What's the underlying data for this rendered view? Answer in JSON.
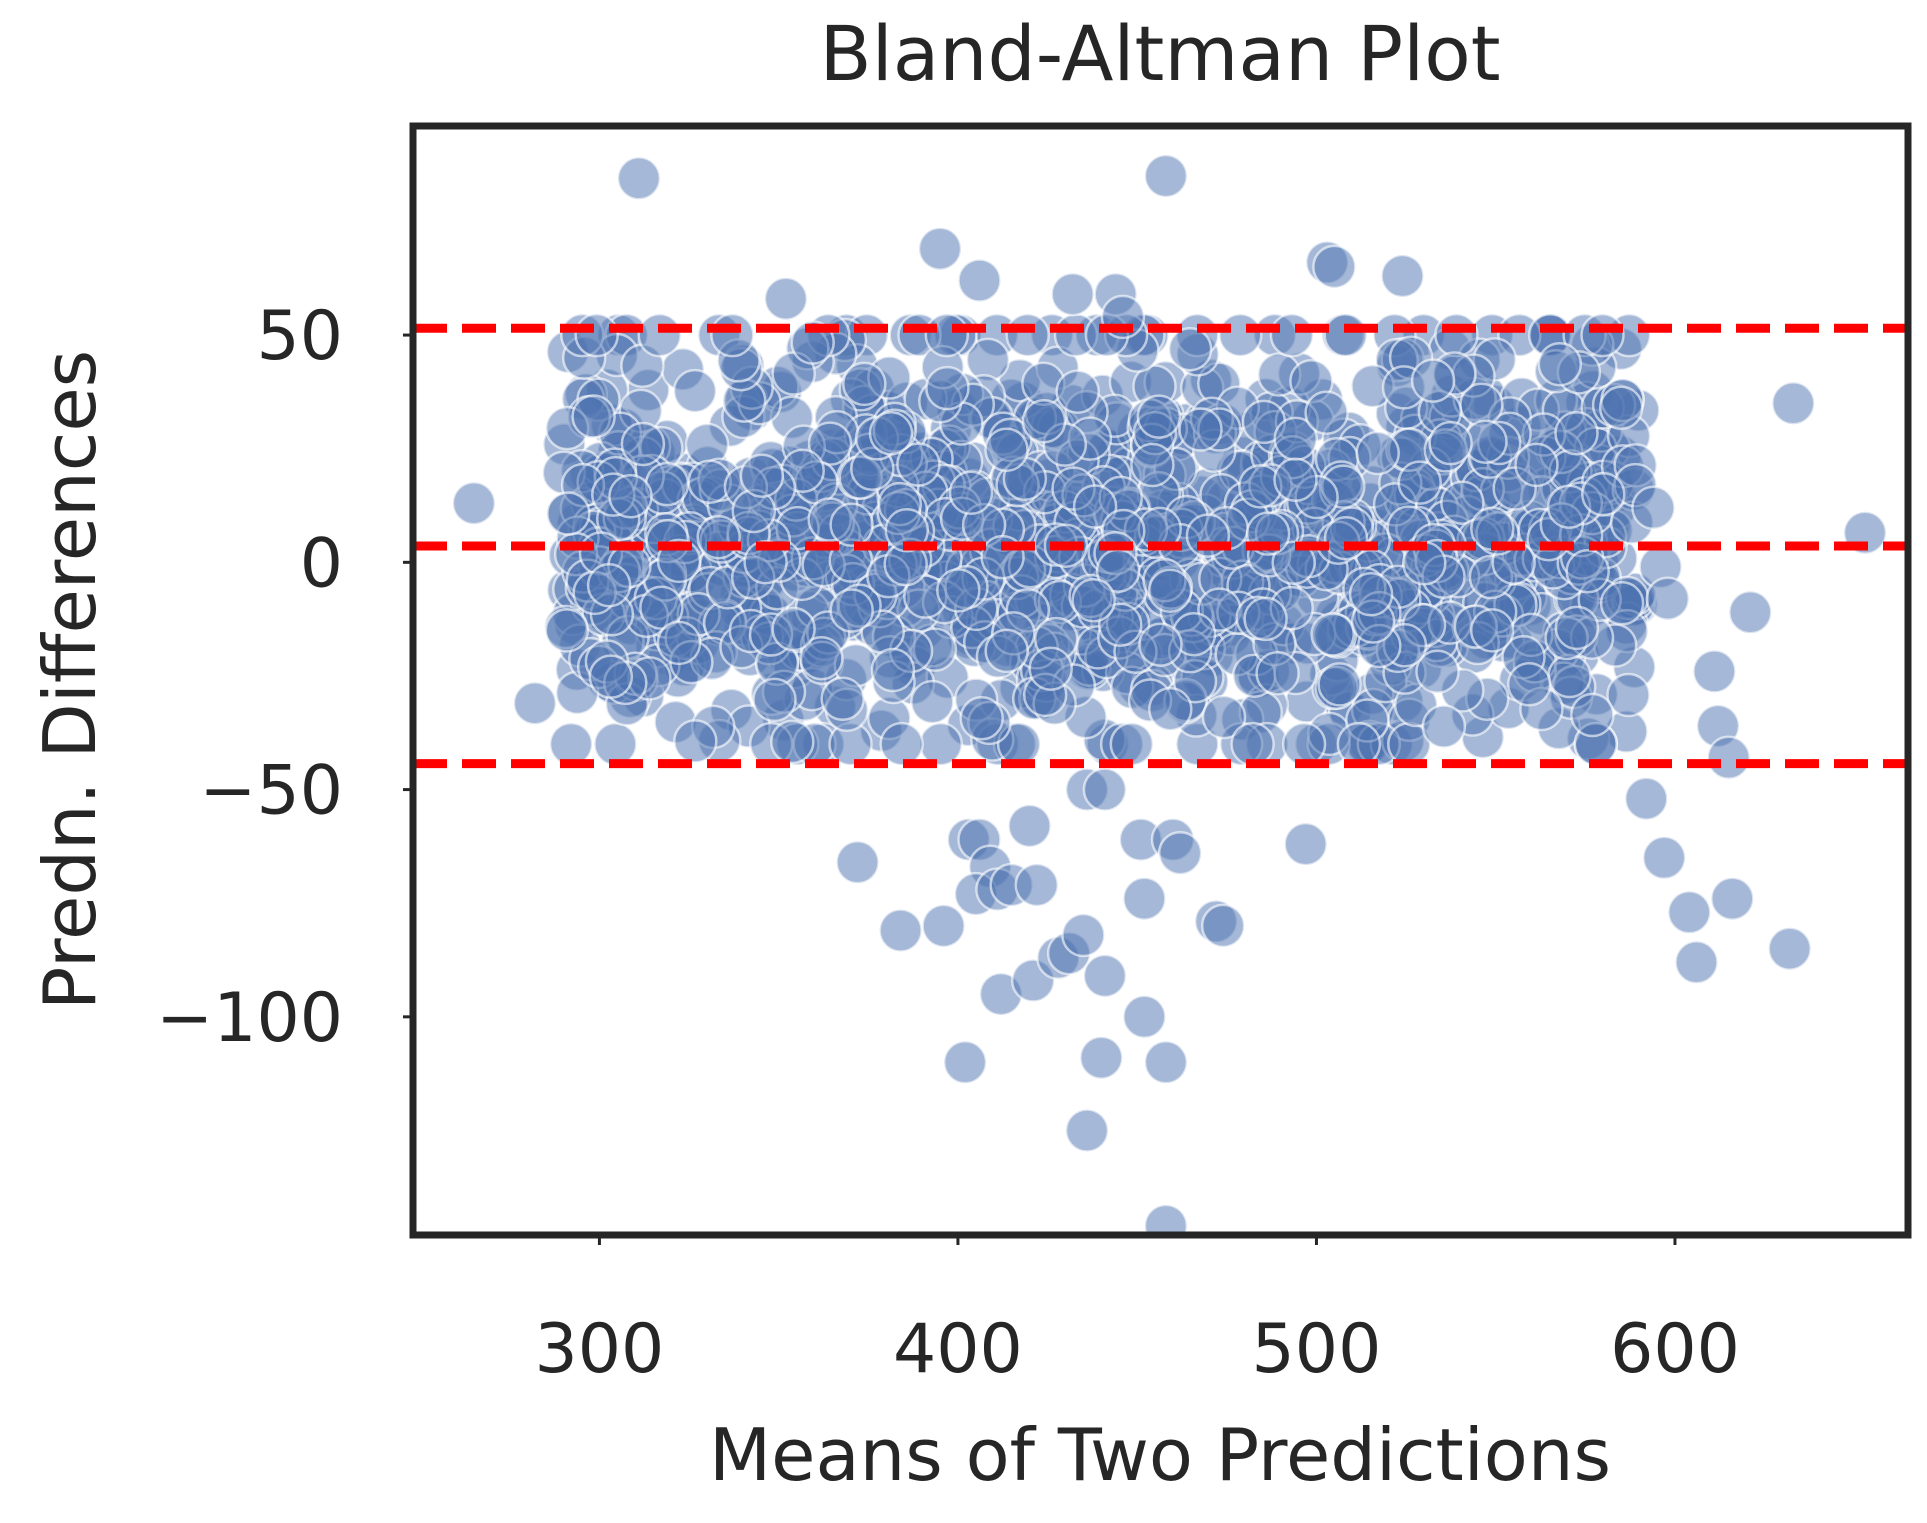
{
  "chart_data": {
    "type": "scatter",
    "title": "Bland-Altman Plot",
    "xlabel": "Means of Two Predictions",
    "ylabel": "Predn. Differences",
    "xlim": [
      248,
      665
    ],
    "ylim": [
      -148,
      96
    ],
    "xticks": [
      300,
      400,
      500,
      600
    ],
    "yticks": [
      -100,
      -50,
      0,
      50
    ],
    "xtick_labels": [
      "300",
      "400",
      "500",
      "600"
    ],
    "ytick_labels": [
      "−100",
      "−50",
      "0",
      "50"
    ],
    "grid": false,
    "point_color": "#4c72b0",
    "point_alpha": 0.5,
    "reference_line_color": "#ff0000",
    "reference_lines": [
      {
        "name": "upper-limit-of-agreement",
        "y": 51.5
      },
      {
        "name": "mean-difference",
        "y": 3.6
      },
      {
        "name": "lower-limit-of-agreement",
        "y": -44.3
      }
    ],
    "dense_cloud": {
      "approx_count": 1500,
      "x_range": [
        290,
        590
      ],
      "y_range": [
        -40,
        50
      ],
      "centered_y": 3.6
    },
    "points": [
      [
        311,
        84.5
      ],
      [
        458,
        85
      ],
      [
        265,
        13
      ],
      [
        653,
        6.5
      ],
      [
        633,
        35
      ],
      [
        621,
        -11
      ],
      [
        282,
        -31
      ],
      [
        372,
        -66
      ],
      [
        384,
        -81
      ],
      [
        396,
        -80
      ],
      [
        403,
        -61
      ],
      [
        406,
        -61
      ],
      [
        409,
        -67
      ],
      [
        405,
        -73
      ],
      [
        411,
        -72
      ],
      [
        415,
        -71
      ],
      [
        420,
        -58
      ],
      [
        422,
        -71
      ],
      [
        412,
        -95
      ],
      [
        421,
        -92
      ],
      [
        428,
        -87
      ],
      [
        431,
        -86
      ],
      [
        435,
        -82
      ],
      [
        441,
        -91
      ],
      [
        402,
        -110
      ],
      [
        440,
        -109
      ],
      [
        436,
        -125
      ],
      [
        452,
        -100
      ],
      [
        458,
        -110
      ],
      [
        452,
        -74
      ],
      [
        451,
        -61
      ],
      [
        460,
        -61
      ],
      [
        462,
        -64
      ],
      [
        458,
        -146
      ],
      [
        472,
        -79
      ],
      [
        474,
        -80
      ],
      [
        497,
        -62
      ],
      [
        436,
        -50
      ],
      [
        441,
        -50
      ],
      [
        592,
        -52
      ],
      [
        597,
        -65
      ],
      [
        604,
        -77
      ],
      [
        606,
        -88
      ],
      [
        611,
        -24
      ],
      [
        612,
        -36
      ],
      [
        615,
        -43
      ],
      [
        616,
        -74
      ],
      [
        632,
        -85
      ],
      [
        596,
        -1
      ],
      [
        598,
        -8
      ],
      [
        589,
        17
      ],
      [
        594,
        12
      ],
      [
        585,
        34
      ],
      [
        580,
        15
      ],
      [
        524,
        63
      ],
      [
        503,
        66
      ],
      [
        505,
        65
      ],
      [
        395,
        69
      ],
      [
        406,
        62
      ],
      [
        432,
        59
      ],
      [
        444,
        59
      ],
      [
        352,
        58
      ],
      [
        446,
        54
      ]
    ]
  }
}
